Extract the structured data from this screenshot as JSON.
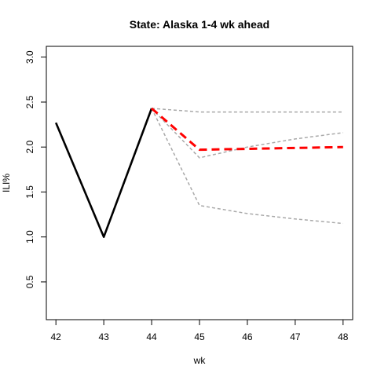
{
  "chart_data": {
    "type": "line",
    "title": "State: Alaska 1-4 wk ahead",
    "xlabel": "wk",
    "ylabel": "ILI%",
    "xlim": [
      41.8,
      48.2
    ],
    "ylim": [
      0.08,
      3.12
    ],
    "x_ticks": [
      42,
      43,
      44,
      45,
      46,
      47,
      48
    ],
    "y_ticks": [
      0.5,
      1.0,
      1.5,
      2.0,
      2.5,
      3.0
    ],
    "x_tick_labels": [
      "42",
      "43",
      "44",
      "45",
      "46",
      "47",
      "48"
    ],
    "y_tick_labels": [
      "0.5",
      "1.0",
      "1.5",
      "2.0",
      "2.5",
      "3.0"
    ],
    "grid": false,
    "legend": "none",
    "series": [
      {
        "role": "observed",
        "color": "#000000",
        "style": "solid",
        "points": [
          {
            "x": 42,
            "y": 2.27
          },
          {
            "x": 43,
            "y": 1.0
          },
          {
            "x": 44,
            "y": 2.43
          }
        ]
      },
      {
        "role": "upper-bound",
        "color": "#a9a9a9",
        "style": "dashed",
        "points": [
          {
            "x": 44,
            "y": 2.43
          },
          {
            "x": 45,
            "y": 2.39
          },
          {
            "x": 46,
            "y": 2.39
          },
          {
            "x": 47,
            "y": 2.39
          },
          {
            "x": 48,
            "y": 2.39
          }
        ]
      },
      {
        "role": "middle-bound",
        "color": "#a9a9a9",
        "style": "dashed",
        "points": [
          {
            "x": 44,
            "y": 2.43
          },
          {
            "x": 45,
            "y": 1.88
          },
          {
            "x": 46,
            "y": 2.0
          },
          {
            "x": 47,
            "y": 2.09
          },
          {
            "x": 48,
            "y": 2.16
          }
        ]
      },
      {
        "role": "lower-bound",
        "color": "#a9a9a9",
        "style": "dashed",
        "points": [
          {
            "x": 44,
            "y": 2.43
          },
          {
            "x": 45,
            "y": 1.35
          },
          {
            "x": 46,
            "y": 1.26
          },
          {
            "x": 47,
            "y": 1.2
          },
          {
            "x": 48,
            "y": 1.15
          }
        ]
      },
      {
        "role": "forecast",
        "color": "#ff0000",
        "style": "dashed",
        "points": [
          {
            "x": 44,
            "y": 2.43
          },
          {
            "x": 45,
            "y": 1.97
          },
          {
            "x": 46,
            "y": 1.98
          },
          {
            "x": 47,
            "y": 1.99
          },
          {
            "x": 48,
            "y": 2.0
          }
        ]
      }
    ]
  }
}
